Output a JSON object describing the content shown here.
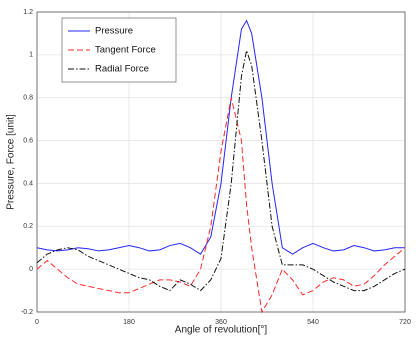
{
  "chart_data": {
    "type": "line",
    "xlabel": "Angle of revolution[°]",
    "ylabel": "Pressure, Force [unit]",
    "x": [
      0,
      20,
      40,
      60,
      80,
      100,
      120,
      140,
      160,
      180,
      200,
      220,
      240,
      260,
      280,
      300,
      320,
      340,
      360,
      380,
      400,
      410,
      420,
      440,
      460,
      480,
      500,
      520,
      540,
      560,
      580,
      600,
      620,
      640,
      660,
      680,
      700,
      720
    ],
    "series": [
      {
        "name": "Pressure",
        "color": "#2424ff",
        "dash": "solid",
        "values": [
          0.1,
          0.09,
          0.085,
          0.09,
          0.1,
          0.095,
          0.085,
          0.09,
          0.1,
          0.11,
          0.1,
          0.085,
          0.09,
          0.11,
          0.12,
          0.1,
          0.07,
          0.15,
          0.4,
          0.8,
          1.12,
          1.16,
          1.1,
          0.8,
          0.4,
          0.1,
          0.07,
          0.1,
          0.12,
          0.1,
          0.085,
          0.09,
          0.11,
          0.1,
          0.085,
          0.09,
          0.1,
          0.1
        ]
      },
      {
        "name": "Tangent Force",
        "color": "#ff2a2a",
        "dash": "dashed",
        "values": [
          0,
          0.04,
          0,
          -0.04,
          -0.07,
          -0.08,
          -0.09,
          -0.1,
          -0.11,
          -0.11,
          -0.09,
          -0.07,
          -0.05,
          -0.05,
          -0.06,
          -0.08,
          0,
          0.2,
          0.55,
          0.8,
          0.6,
          0.3,
          0.1,
          -0.2,
          -0.12,
          0,
          -0.05,
          -0.12,
          -0.1,
          -0.06,
          -0.04,
          -0.05,
          -0.08,
          -0.07,
          -0.03,
          0.02,
          0.06,
          0.1
        ]
      },
      {
        "name": "Radial Force",
        "color": "#111111",
        "dash": "dashdot",
        "values": [
          0.03,
          0.07,
          0.09,
          0.1,
          0.09,
          0.06,
          0.04,
          0.02,
          0,
          -0.02,
          -0.04,
          -0.05,
          -0.08,
          -0.1,
          -0.05,
          -0.07,
          -0.1,
          -0.05,
          0.05,
          0.4,
          0.9,
          1.02,
          0.95,
          0.6,
          0.2,
          0.02,
          0.02,
          0.02,
          0,
          -0.03,
          -0.06,
          -0.08,
          -0.1,
          -0.1,
          -0.08,
          -0.05,
          -0.02,
          0
        ]
      }
    ],
    "xlim": [
      0,
      720
    ],
    "xticks": [
      0,
      180,
      360,
      540,
      720
    ],
    "ylim": [
      -0.2,
      1.2
    ],
    "yticks": [
      -0.2,
      0,
      0.2,
      0.4,
      0.6,
      0.8,
      1,
      1.2
    ],
    "grid": true,
    "legend": "upper left"
  }
}
